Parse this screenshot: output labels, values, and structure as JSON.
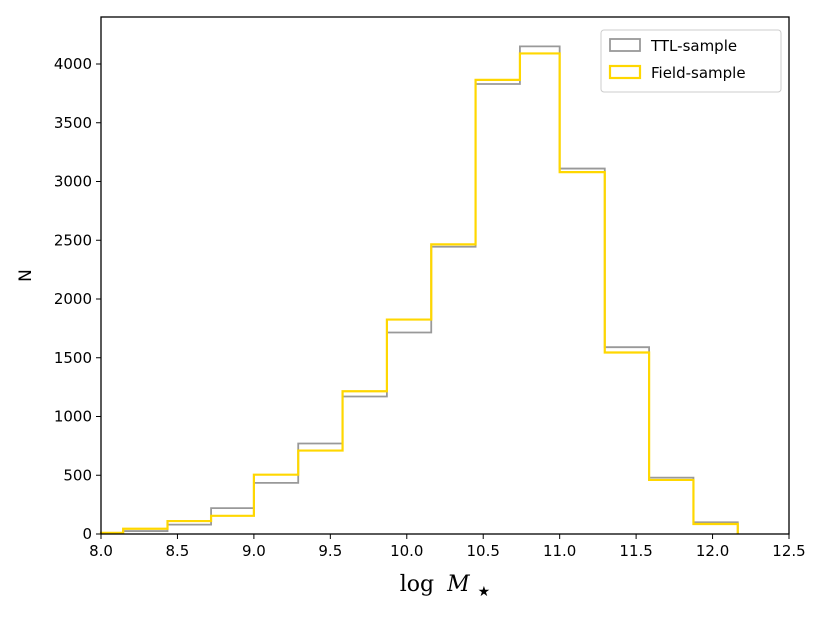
{
  "chart_data": {
    "type": "histogram-step",
    "xlabel": "log M★",
    "xlabel_parts": {
      "func": "log",
      "var": "M",
      "sub": "★"
    },
    "ylabel": "N",
    "xlim": [
      8.0,
      12.5
    ],
    "ylim": [
      0,
      4400
    ],
    "xticks": [
      8.0,
      8.5,
      9.0,
      9.5,
      10.0,
      10.5,
      11.0,
      11.5,
      12.0,
      12.5
    ],
    "xtick_labels": [
      "8.0",
      "8.5",
      "9.0",
      "9.5",
      "10.0",
      "10.5",
      "11.0",
      "11.5",
      "12.0",
      "12.5"
    ],
    "yticks": [
      0,
      500,
      1000,
      1500,
      2000,
      2500,
      3000,
      3500,
      4000
    ],
    "ytick_labels": [
      "0",
      "500",
      "1000",
      "1500",
      "2000",
      "2500",
      "3000",
      "3500",
      "4000"
    ],
    "grid": false,
    "legend_position": "top-right",
    "bin_edges": [
      8.0,
      8.145,
      8.435,
      8.72,
      9.0,
      9.29,
      9.58,
      9.87,
      10.16,
      10.45,
      10.74,
      11.0,
      11.295,
      11.585,
      11.875,
      12.165
    ],
    "series": [
      {
        "name": "TTL-sample",
        "color": "#999999",
        "values": [
          5,
          25,
          80,
          220,
          435,
          770,
          1170,
          1715,
          2445,
          3830,
          4150,
          3110,
          1590,
          480,
          100
        ]
      },
      {
        "name": "Field-sample",
        "color": "#ffd700",
        "values": [
          10,
          45,
          110,
          155,
          505,
          710,
          1215,
          1825,
          2465,
          3865,
          4090,
          3080,
          1545,
          460,
          85
        ]
      }
    ]
  }
}
